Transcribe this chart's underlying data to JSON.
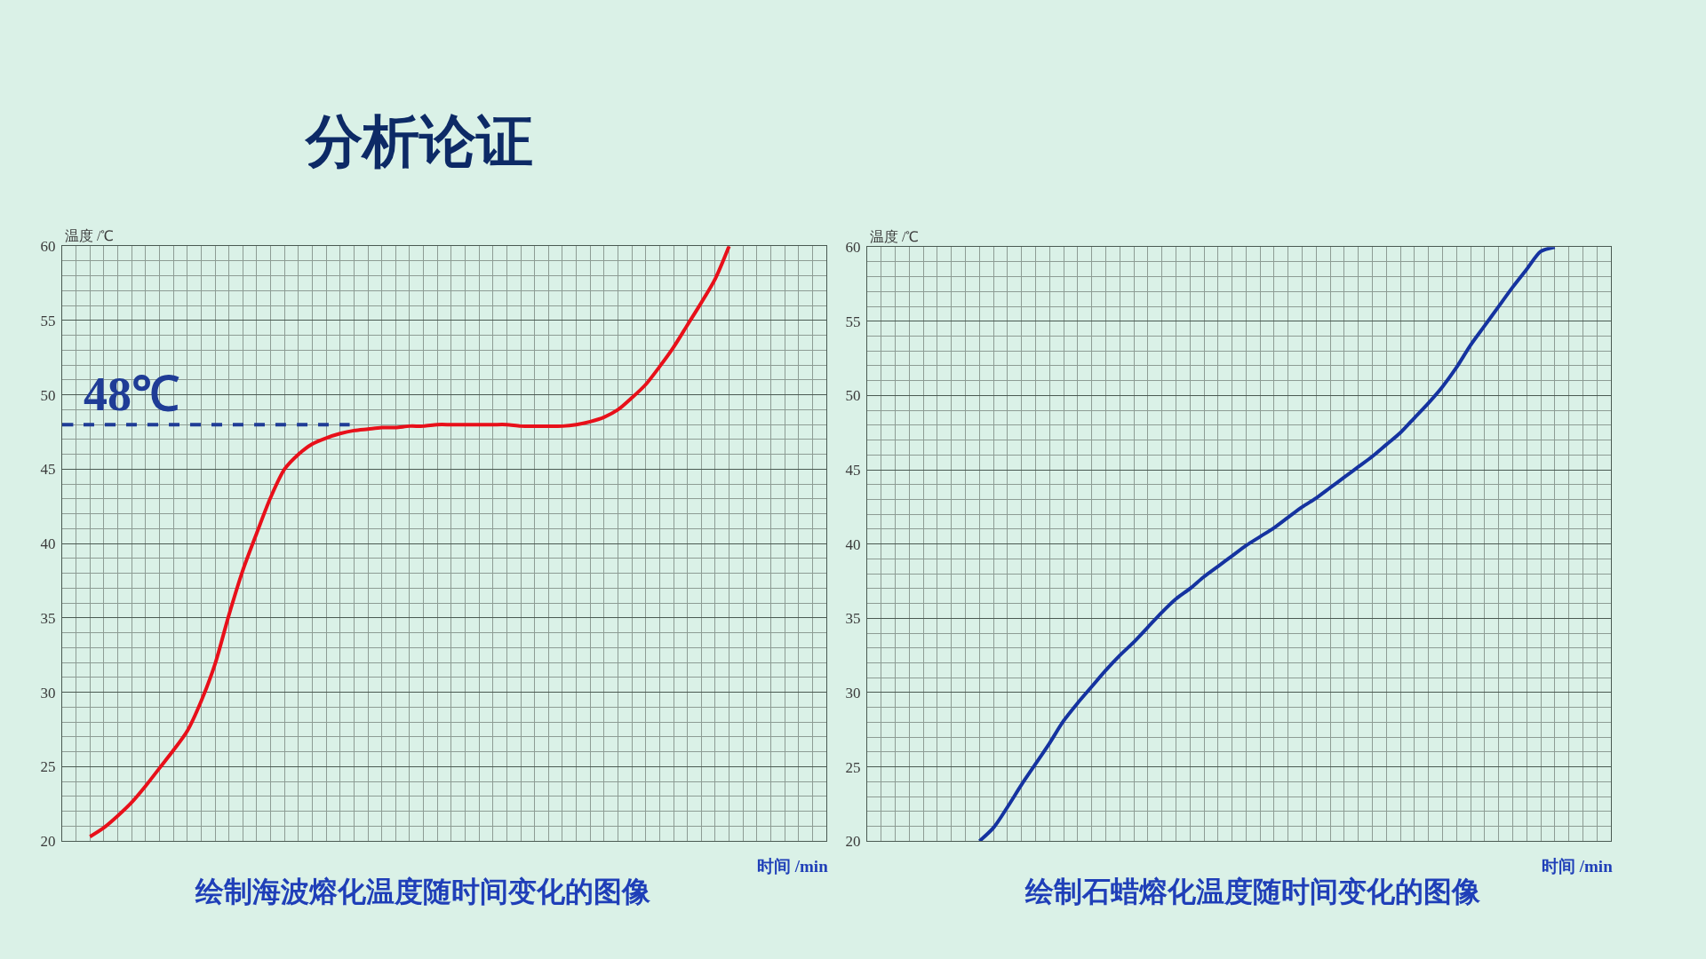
{
  "chart_data": [
    {
      "type": "line",
      "title": "绘制海波熔化温度随时间变化的图像",
      "xlabel": "时间 /min",
      "ylabel": "温度 /℃",
      "categories": [
        null,
        null,
        null,
        null,
        null,
        null,
        null,
        null,
        null,
        null,
        null,
        null,
        null,
        null,
        null,
        null,
        null,
        null,
        null,
        null,
        null,
        null,
        null,
        null,
        null,
        null,
        null,
        null,
        null,
        null,
        null,
        null,
        null,
        null,
        null,
        null,
        null,
        null,
        null,
        null,
        null,
        null,
        null,
        null,
        null,
        null,
        null,
        null,
        null,
        null,
        null,
        null,
        null,
        null,
        null,
        null
      ],
      "series": [
        {
          "color": "#e8101a",
          "values": [
            null,
            null,
            20.3,
            20.9,
            21.7,
            22.6,
            23.7,
            24.9,
            26.1,
            27.4,
            29.4,
            31.9,
            35.2,
            38.2,
            40.7,
            43.1,
            45.0,
            46.0,
            46.7,
            47.1,
            47.4,
            47.6,
            47.7,
            47.8,
            47.8,
            47.9,
            47.9,
            48.0,
            48.0,
            48.0,
            48.0,
            48.0,
            48.0,
            47.9,
            47.9,
            47.9,
            47.9,
            48.0,
            48.2,
            48.5,
            49.0,
            49.8,
            50.7,
            51.9,
            53.2,
            54.7,
            56.2,
            57.8,
            60,
            null,
            null,
            null,
            null,
            null,
            null,
            null
          ]
        },
        {
          "color": "#1f3c96",
          "line_style": "dashed",
          "values": [
            48,
            48,
            48,
            48,
            48,
            48,
            48,
            48,
            48,
            48,
            48,
            48,
            48,
            48,
            48,
            48,
            48,
            48,
            48,
            48,
            48,
            48,
            null,
            null,
            null,
            null,
            null,
            null,
            null,
            null,
            null,
            null,
            null,
            null,
            null,
            null,
            null,
            null,
            null,
            null,
            null,
            null,
            null,
            null,
            null,
            null,
            null,
            null,
            null,
            null,
            null,
            null,
            null,
            null,
            null,
            null
          ]
        }
      ],
      "ylim": [
        20,
        60
      ],
      "yticks": [
        20,
        25,
        30,
        35,
        40,
        45,
        50,
        55,
        60
      ],
      "grid": true,
      "tick_labels": "y",
      "annotations": [
        "分析论证",
        {
          "text": "48℃",
          "y": 48
        }
      ]
    },
    {
      "type": "line",
      "title": "绘制石蜡熔化温度随时间变化的图像",
      "xlabel": "时间 /min",
      "ylabel": "温度 /℃",
      "categories": [
        null,
        null,
        null,
        null,
        null,
        null,
        null,
        null,
        null,
        null,
        null,
        null,
        null,
        null,
        null,
        null,
        null,
        null,
        null,
        null,
        null,
        null,
        null,
        null,
        null,
        null,
        null,
        null,
        null,
        null,
        null,
        null,
        null,
        null,
        null,
        null,
        null,
        null,
        null,
        null,
        null,
        null,
        null,
        null,
        null,
        null,
        null,
        null,
        null,
        null,
        null,
        null,
        null,
        null
      ],
      "series": [
        {
          "color": "#1533a0",
          "values": [
            null,
            null,
            null,
            null,
            null,
            null,
            null,
            null,
            20,
            20.9,
            22.3,
            23.8,
            25.2,
            26.6,
            28.1,
            29.3,
            30.4,
            31.5,
            32.5,
            33.4,
            34.4,
            35.4,
            36.3,
            37.0,
            37.8,
            38.5,
            39.2,
            39.9,
            40.5,
            41.1,
            41.8,
            42.5,
            43.1,
            43.8,
            44.5,
            45.2,
            45.9,
            46.7,
            47.5,
            48.5,
            49.5,
            50.6,
            51.9,
            53.4,
            54.7,
            56.0,
            57.3,
            58.5,
            59.7,
            60,
            null,
            null,
            null,
            null
          ]
        }
      ],
      "ylim": [
        20,
        60
      ],
      "yticks": [
        20,
        25,
        30,
        35,
        40,
        45,
        50,
        55,
        60
      ],
      "grid": true,
      "tick_labels": "y"
    }
  ]
}
